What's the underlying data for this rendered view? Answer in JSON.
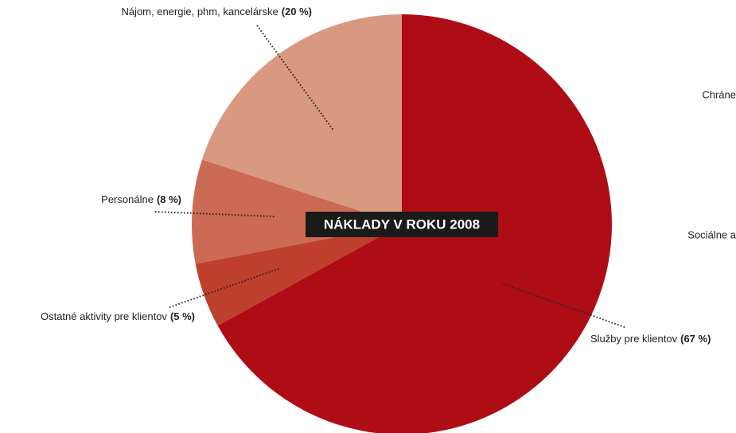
{
  "chart_data": {
    "type": "pie",
    "title": "NÁKLADY V ROKU 2008",
    "categories": [
      "Služby pre klientov",
      "Ostatné aktivity pre klientov",
      "Personálne",
      "Nájom, energie, phm, kancelárske"
    ],
    "values": [
      67,
      5,
      8,
      20
    ],
    "value_labels": [
      "(67 %)",
      "(5 %)",
      "(8 %)",
      "(20 %)"
    ],
    "colors": [
      "#ae0d16",
      "#bf3f2d",
      "#cc6b53",
      "#d99981"
    ],
    "annotations": [
      "Chráne",
      "Sociálne a"
    ]
  }
}
